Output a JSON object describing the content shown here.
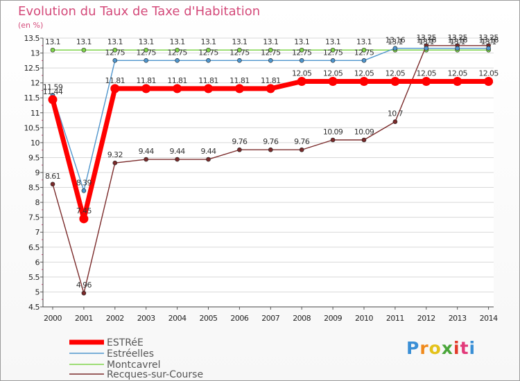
{
  "chart_data": {
    "type": "line",
    "title": "Evolution du Taux de Taxe d'Habitation",
    "ylabel": "(en %)",
    "xlabel": "",
    "categories": [
      "2000",
      "2001",
      "2002",
      "2003",
      "2004",
      "2005",
      "2006",
      "2007",
      "2008",
      "2009",
      "2010",
      "2011",
      "2012",
      "2013",
      "2014"
    ],
    "ylim": [
      4.5,
      13.5
    ],
    "ytick_step": 0.5,
    "ytick_labels": [
      "4.5",
      "5",
      "5.5",
      "6",
      "6.5",
      "7",
      "7.5",
      "8",
      "8.5",
      "9",
      "9.5",
      "10",
      "10.5",
      "11",
      "11.5",
      "12",
      "12.5",
      "13",
      "13.5"
    ],
    "series": [
      {
        "name": "ESTRéE",
        "color": "#ff0000",
        "values": [
          11.44,
          7.45,
          11.81,
          11.81,
          11.81,
          11.81,
          11.81,
          11.81,
          12.05,
          12.05,
          12.05,
          12.05,
          12.05,
          12.05,
          12.05
        ],
        "labels": [
          "11.44",
          "7.45",
          "11.81",
          "11.81",
          "11.81",
          "11.81",
          "11.81",
          "11.81",
          "12.05",
          "12.05",
          "12.05",
          "12.05",
          "12.05",
          "12.05",
          "12.05"
        ]
      },
      {
        "name": "Estréelles",
        "color": "#4f95cc",
        "values": [
          11.59,
          8.39,
          12.75,
          12.75,
          12.75,
          12.75,
          12.75,
          12.75,
          12.75,
          12.75,
          12.75,
          13.16,
          13.16,
          13.16,
          13.16
        ],
        "labels": [
          "11.59",
          "8.39",
          "12.75",
          "12.75",
          "12.75",
          "12.75",
          "12.75",
          "12.75",
          "12.75",
          "12.75",
          "12.75",
          "13.16",
          "13.16",
          "13.16",
          "13.16"
        ]
      },
      {
        "name": "Montcavrel",
        "color": "#7fd44a",
        "values": [
          13.1,
          13.1,
          13.1,
          13.1,
          13.1,
          13.1,
          13.1,
          13.1,
          13.1,
          13.1,
          13.1,
          13.1,
          13.1,
          13.1,
          13.1
        ],
        "labels": [
          "13.1",
          "13.1",
          "13.1",
          "13.1",
          "13.1",
          "13.1",
          "13.1",
          "13.1",
          "13.1",
          "13.1",
          "13.1",
          "13.1",
          "13.1",
          "13.1",
          "13.1"
        ]
      },
      {
        "name": "Recques-sur-Course",
        "color": "#7a2a2a",
        "values": [
          8.61,
          4.96,
          9.32,
          9.44,
          9.44,
          9.44,
          9.76,
          9.76,
          9.76,
          10.09,
          10.09,
          10.7,
          13.25,
          13.25,
          13.25
        ],
        "labels": [
          "8.61",
          "4.96",
          "9.32",
          "9.44",
          "9.44",
          "9.44",
          "9.76",
          "9.76",
          "9.76",
          "10.09",
          "10.09",
          "10.7",
          "13.25",
          "13.25",
          "13.25"
        ]
      }
    ]
  },
  "logo": {
    "letters": [
      "P",
      "r",
      "o",
      "x",
      "i",
      "t",
      "i"
    ],
    "colors": [
      "#3a8fd6",
      "#f08a1c",
      "#e4c21a",
      "#4aa63a",
      "#e23a2a",
      "#e23a7a",
      "#3a8fd6"
    ]
  }
}
